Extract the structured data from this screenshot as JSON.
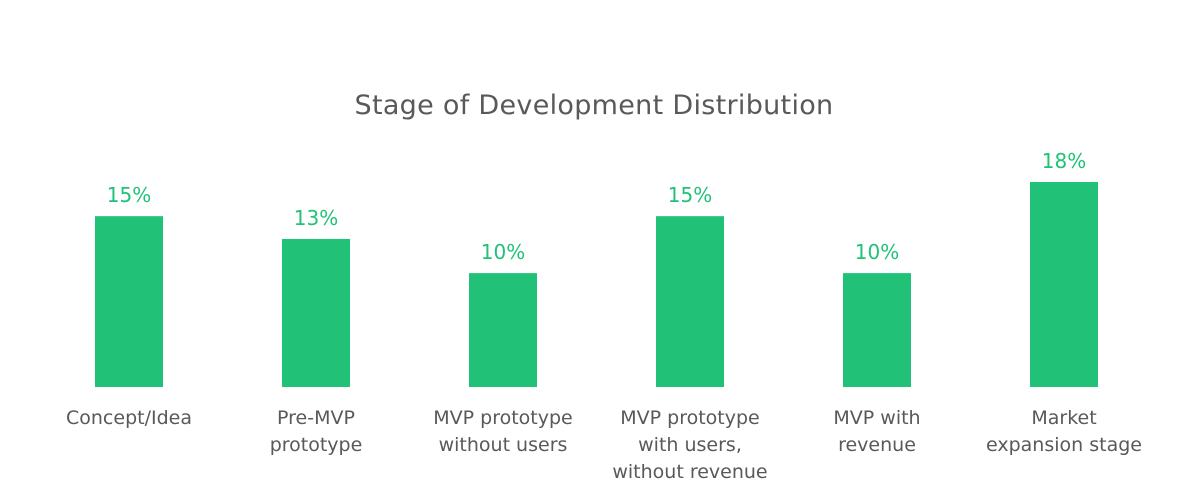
{
  "chart_data": {
    "type": "bar",
    "title": "Stage of Development Distribution",
    "categories": [
      [
        "Concept/Idea"
      ],
      [
        "Pre-MVP",
        "prototype"
      ],
      [
        "MVP prototype",
        "without users"
      ],
      [
        "MVP prototype",
        "with users,",
        "without revenue"
      ],
      [
        "MVP with",
        "revenue"
      ],
      [
        "Market",
        "expansion stage"
      ]
    ],
    "values": [
      15,
      13,
      10,
      15,
      10,
      18
    ],
    "value_labels": [
      "15%",
      "13%",
      "10%",
      "15%",
      "10%",
      "18%"
    ],
    "unit": "%",
    "xlabel": "",
    "ylabel": "",
    "ylim": [
      0,
      18
    ],
    "grid": false,
    "legend": "none",
    "colors": {
      "bar": "#21c278",
      "value_label": "#21c278",
      "tick_label": "#595959",
      "title": "#595959"
    }
  }
}
